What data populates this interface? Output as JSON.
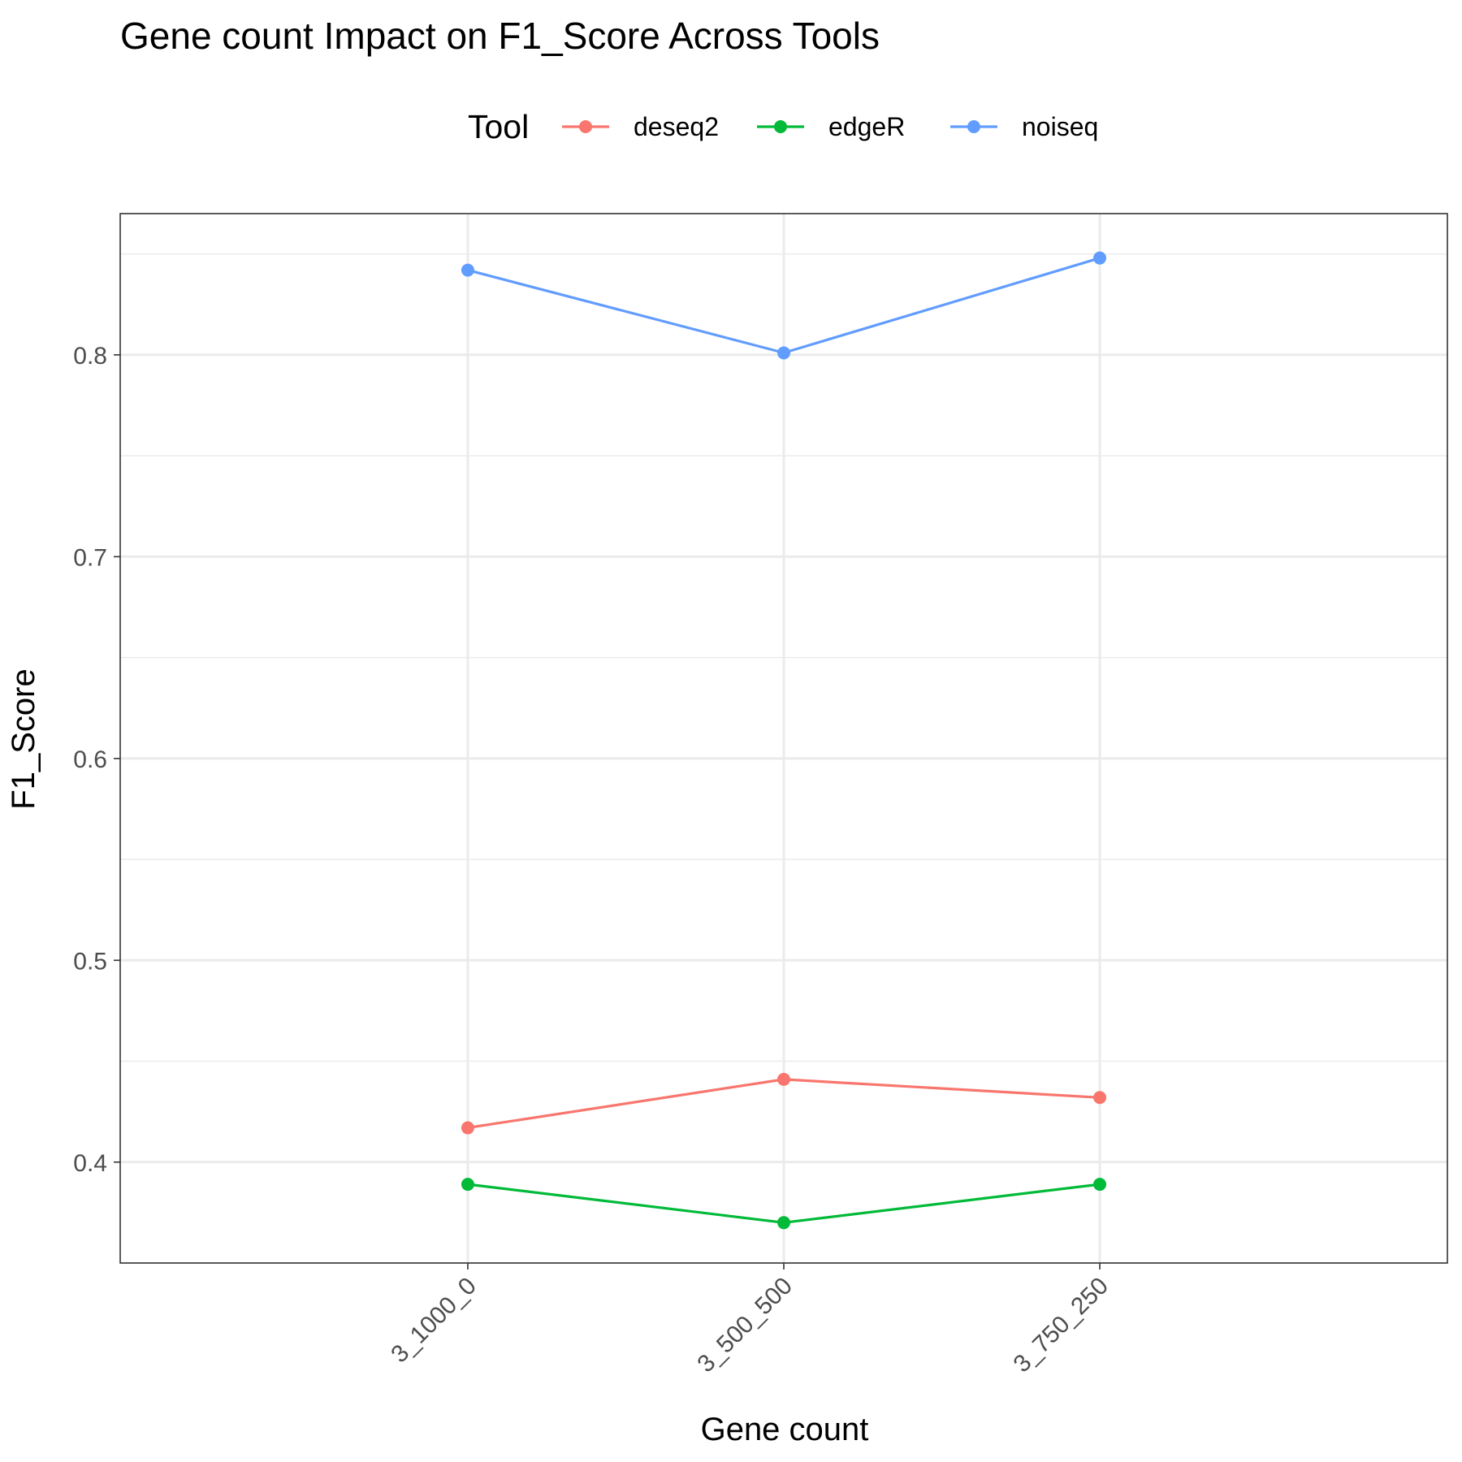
{
  "chart_data": {
    "type": "line",
    "title": "Gene count Impact on F1_Score Across Tools",
    "xlabel": "Gene count",
    "ylabel": "F1_Score",
    "categories": [
      "3_1000_0",
      "3_500_500",
      "3_750_250"
    ],
    "ylim": [
      0.35,
      0.87
    ],
    "yticks": [
      0.4,
      0.5,
      0.6,
      0.7,
      0.8
    ],
    "ytick_labels": [
      "0.4",
      "0.5",
      "0.6",
      "0.7",
      "0.8"
    ],
    "grid": true,
    "legend": {
      "title": "Tool",
      "position": "top"
    },
    "series": [
      {
        "name": "deseq2",
        "color": "#F8766D",
        "values": [
          0.417,
          0.441,
          0.432
        ]
      },
      {
        "name": "edgeR",
        "color": "#00BA38",
        "values": [
          0.389,
          0.37,
          0.389
        ]
      },
      {
        "name": "noiseq",
        "color": "#619CFF",
        "values": [
          0.842,
          0.801,
          0.848
        ]
      }
    ]
  }
}
